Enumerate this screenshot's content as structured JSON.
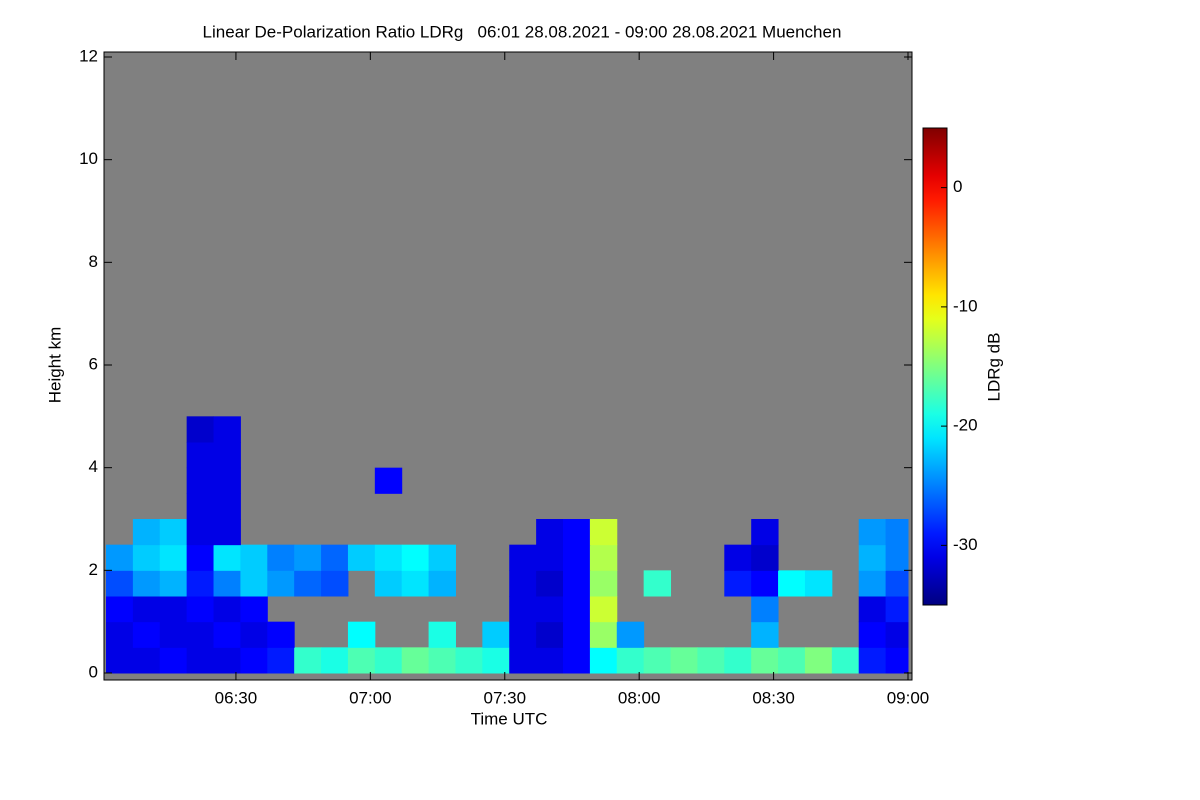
{
  "chart_data": {
    "type": "heatmap",
    "title": "Linear De-Polarization Ratio LDRg   06:01 28.08.2021 - 09:00 28.08.2021 Muenchen",
    "x_label": "Time UTC",
    "y_label": "Height km",
    "colorbar_label": "LDRg dB",
    "xlim": [
      361,
      540
    ],
    "xticks": [
      {
        "value": 390,
        "label": "06:30"
      },
      {
        "value": 420,
        "label": "07:00"
      },
      {
        "value": 450,
        "label": "07:30"
      },
      {
        "value": 480,
        "label": "08:00"
      },
      {
        "value": 510,
        "label": "08:30"
      },
      {
        "value": 540,
        "label": "09:00"
      }
    ],
    "ylim": [
      0,
      12
    ],
    "yticks": [
      0,
      2,
      4,
      6,
      8,
      10,
      12
    ],
    "zlim": [
      -35,
      5
    ],
    "zticks": [
      0,
      -10,
      -20,
      -30
    ],
    "colormap": "jet",
    "background": "#808080",
    "x": [
      361,
      367,
      373,
      379,
      385,
      391,
      397,
      403,
      409,
      415,
      421,
      427,
      433,
      439,
      445,
      451,
      457,
      463,
      469,
      475,
      481,
      487,
      493,
      499,
      505,
      511,
      517,
      523,
      529,
      535
    ],
    "y": [
      0,
      0.5,
      1,
      1.5,
      2,
      2.5,
      3,
      3.5,
      4,
      4.5,
      5
    ],
    "z": [
      [
        -31,
        -31,
        -30,
        -31,
        -31,
        -30,
        -29,
        -18,
        -19,
        -17,
        -18,
        -16,
        -17,
        -18,
        -19,
        -31,
        -31,
        -30,
        -20,
        -18,
        -17,
        -16,
        -17,
        -18,
        -16,
        -17,
        -15,
        -18,
        -29,
        -30
      ],
      [
        -31,
        -30,
        -31,
        -31,
        -30,
        -31,
        -30,
        null,
        null,
        -20,
        null,
        null,
        -19,
        null,
        -22,
        -31,
        -32,
        -30,
        -14,
        -24,
        null,
        null,
        null,
        null,
        -23,
        null,
        null,
        null,
        -30,
        -31
      ],
      [
        -30,
        -31,
        -31,
        -30,
        -31,
        -30,
        null,
        null,
        null,
        null,
        null,
        null,
        null,
        null,
        null,
        -31,
        -31,
        -30,
        -12,
        null,
        null,
        null,
        null,
        null,
        -25,
        null,
        null,
        null,
        -31,
        -29
      ],
      [
        -27,
        -24,
        -23,
        -29,
        -25,
        -22,
        -24,
        -26,
        -27,
        null,
        -22,
        -21,
        -23,
        null,
        null,
        -31,
        -32,
        -30,
        -14,
        null,
        -18,
        null,
        null,
        -29,
        -30,
        -20,
        -21,
        null,
        -24,
        -27
      ],
      [
        -24,
        -22,
        -21,
        -30,
        -21,
        -22,
        -25,
        -24,
        -26,
        -22,
        -21,
        -20,
        -22,
        null,
        null,
        -31,
        -31,
        -30,
        -13,
        null,
        null,
        null,
        null,
        -31,
        -32,
        null,
        null,
        null,
        -23,
        -25
      ],
      [
        null,
        -23,
        -22,
        -31,
        -31,
        null,
        null,
        null,
        null,
        null,
        null,
        null,
        null,
        null,
        null,
        null,
        -31,
        -30,
        -12,
        null,
        null,
        null,
        null,
        null,
        -31,
        null,
        null,
        null,
        -24,
        -25
      ],
      [
        null,
        null,
        null,
        -31,
        -31,
        null,
        null,
        null,
        null,
        null,
        null,
        null,
        null,
        null,
        null,
        null,
        null,
        null,
        null,
        null,
        null,
        null,
        null,
        null,
        null,
        null,
        null,
        null,
        null,
        null
      ],
      [
        null,
        null,
        null,
        -31,
        -31,
        null,
        null,
        null,
        null,
        null,
        -30,
        null,
        null,
        null,
        null,
        null,
        null,
        null,
        null,
        null,
        null,
        null,
        null,
        null,
        null,
        null,
        null,
        null,
        null,
        null
      ],
      [
        null,
        null,
        null,
        -31,
        -31,
        null,
        null,
        null,
        null,
        null,
        null,
        null,
        null,
        null,
        null,
        null,
        null,
        null,
        null,
        null,
        null,
        null,
        null,
        null,
        null,
        null,
        null,
        null,
        null,
        null
      ],
      [
        null,
        null,
        null,
        -32,
        -31,
        null,
        null,
        null,
        null,
        null,
        null,
        null,
        null,
        null,
        null,
        null,
        null,
        null,
        null,
        null,
        null,
        null,
        null,
        null,
        null,
        null,
        null,
        null,
        null,
        null
      ]
    ]
  }
}
